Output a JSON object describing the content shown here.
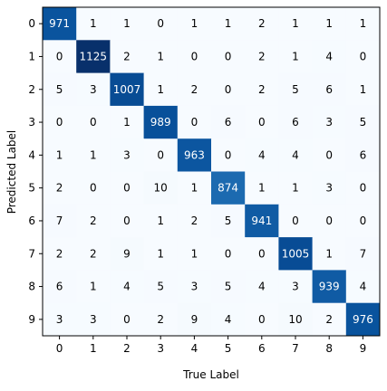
{
  "chart_data": {
    "type": "heatmap",
    "xlabel": "True Label",
    "ylabel": "Predicted Label",
    "x_categories": [
      "0",
      "1",
      "2",
      "3",
      "4",
      "5",
      "6",
      "7",
      "8",
      "9"
    ],
    "y_categories": [
      "0",
      "1",
      "2",
      "3",
      "4",
      "5",
      "6",
      "7",
      "8",
      "9"
    ],
    "colormap": "Blues",
    "grid": false,
    "matrix": [
      [
        971,
        1,
        1,
        0,
        1,
        1,
        2,
        1,
        1,
        1
      ],
      [
        0,
        1125,
        2,
        1,
        0,
        0,
        2,
        1,
        4,
        0
      ],
      [
        5,
        3,
        1007,
        1,
        2,
        0,
        2,
        5,
        6,
        1
      ],
      [
        0,
        0,
        1,
        989,
        0,
        6,
        0,
        6,
        3,
        5
      ],
      [
        1,
        1,
        3,
        0,
        963,
        0,
        4,
        4,
        0,
        6
      ],
      [
        2,
        0,
        0,
        10,
        1,
        874,
        1,
        1,
        3,
        0
      ],
      [
        7,
        2,
        0,
        1,
        2,
        5,
        941,
        0,
        0,
        0
      ],
      [
        2,
        2,
        9,
        1,
        1,
        0,
        0,
        1005,
        1,
        7
      ],
      [
        6,
        1,
        4,
        5,
        3,
        5,
        4,
        3,
        939,
        4
      ],
      [
        3,
        3,
        0,
        2,
        9,
        4,
        0,
        10,
        2,
        976
      ]
    ]
  }
}
